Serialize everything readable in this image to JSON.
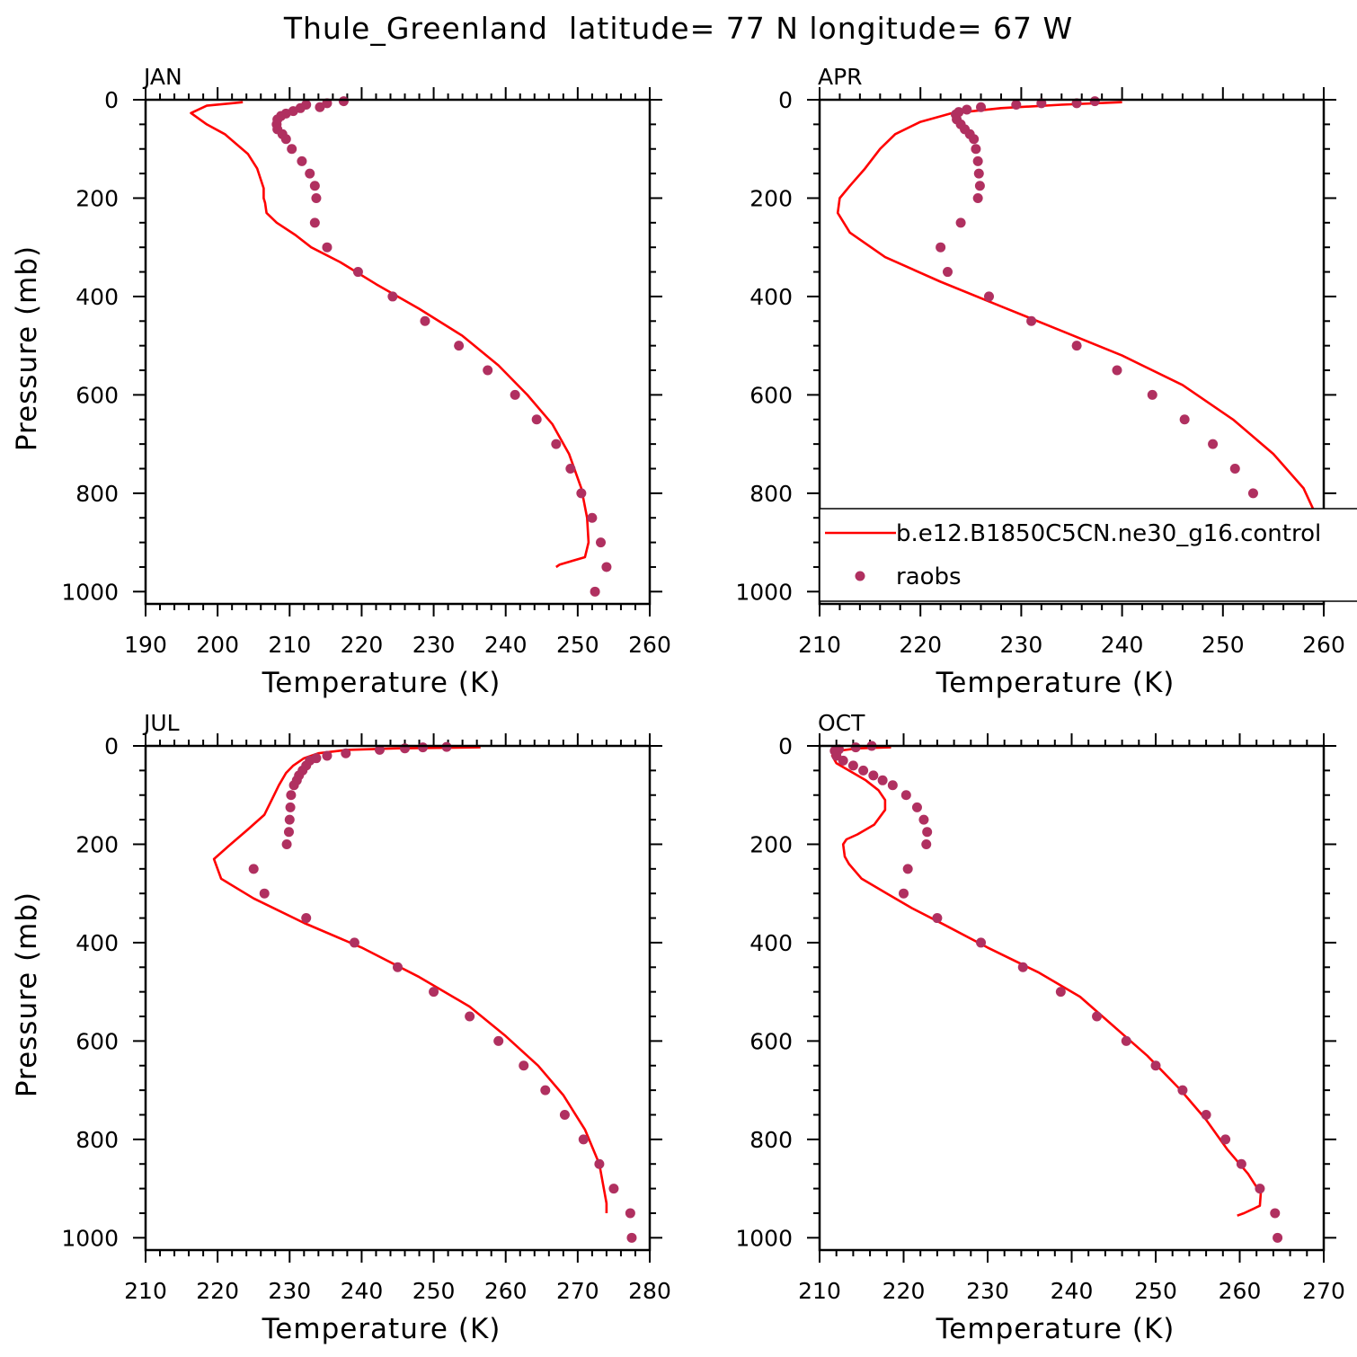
{
  "title": "Thule_Greenland  latitude= 77 N longitude= 67 W",
  "colors": {
    "model_line": "#ff0000",
    "obs_points": "#b03060",
    "frame": "#000000"
  },
  "legend": {
    "entries": [
      "b.e12.B1850C5CN.ne30_g16.control",
      "raobs"
    ],
    "panel": "APR"
  },
  "chart_data": [
    {
      "type": "line",
      "panel_label": "JAN",
      "xlabel": "Temperature (K)",
      "ylabel": "Pressure (mb)",
      "xlim": [
        190,
        260
      ],
      "ylim": [
        1025,
        0
      ],
      "xticks": [
        190,
        200,
        210,
        220,
        230,
        240,
        250,
        260
      ],
      "yticks": [
        0,
        200,
        400,
        600,
        800,
        1000
      ],
      "series": [
        {
          "name": "b.e12.B1850C5CN.ne30_g16.control",
          "kind": "line",
          "points": [
            [
              203.5,
              5
            ],
            [
              198.5,
              12
            ],
            [
              196.3,
              27
            ],
            [
              198.5,
              50
            ],
            [
              201,
              70
            ],
            [
              204.2,
              110
            ],
            [
              205.5,
              140
            ],
            [
              206.4,
              180
            ],
            [
              206.4,
              200
            ],
            [
              206.6,
              210
            ],
            [
              206.8,
              230
            ],
            [
              208.2,
              250
            ],
            [
              210.8,
              275
            ],
            [
              213,
              300
            ],
            [
              217,
              330
            ],
            [
              222,
              375
            ],
            [
              228,
              425
            ],
            [
              234,
              480
            ],
            [
              239,
              540
            ],
            [
              243,
              600
            ],
            [
              246.5,
              660
            ],
            [
              248.8,
              720
            ],
            [
              250.5,
              790
            ],
            [
              251.3,
              850
            ],
            [
              251.5,
              900
            ],
            [
              251,
              930
            ],
            [
              247.5,
              945
            ],
            [
              247,
              950
            ]
          ]
        },
        {
          "name": "raobs",
          "kind": "scatter",
          "points": [
            [
              217.5,
              3
            ],
            [
              215.2,
              7
            ],
            [
              214.2,
              15
            ],
            [
              212.3,
              10
            ],
            [
              211.5,
              17
            ],
            [
              210.5,
              23
            ],
            [
              209.5,
              28
            ],
            [
              208.8,
              33
            ],
            [
              208.3,
              40
            ],
            [
              208.2,
              50
            ],
            [
              208.3,
              60
            ],
            [
              209,
              70
            ],
            [
              209.5,
              80
            ],
            [
              210.3,
              100
            ],
            [
              211.7,
              125
            ],
            [
              212.8,
              150
            ],
            [
              213.5,
              175
            ],
            [
              213.7,
              200
            ],
            [
              213.5,
              250
            ],
            [
              215.2,
              300
            ],
            [
              219.5,
              350
            ],
            [
              224.3,
              400
            ],
            [
              228.8,
              450
            ],
            [
              233.5,
              500
            ],
            [
              237.5,
              550
            ],
            [
              241.3,
              600
            ],
            [
              244.3,
              650
            ],
            [
              247,
              700
            ],
            [
              249,
              750
            ],
            [
              250.5,
              800
            ],
            [
              252,
              850
            ],
            [
              253.2,
              900
            ],
            [
              254,
              950
            ],
            [
              252.4,
              1000
            ]
          ]
        }
      ]
    },
    {
      "type": "line",
      "panel_label": "APR",
      "xlabel": "Temperature (K)",
      "ylabel": "",
      "xlim": [
        210,
        260
      ],
      "ylim": [
        1025,
        0
      ],
      "xticks": [
        210,
        220,
        230,
        240,
        250,
        260
      ],
      "yticks": [
        0,
        200,
        400,
        600,
        800,
        1000
      ],
      "series": [
        {
          "name": "b.e12.B1850C5CN.ne30_g16.control",
          "kind": "line",
          "points": [
            [
              240,
              5
            ],
            [
              234,
              10
            ],
            [
              228,
              17
            ],
            [
              223,
              28
            ],
            [
              220,
              45
            ],
            [
              217.5,
              70
            ],
            [
              216,
              100
            ],
            [
              214.5,
              140
            ],
            [
              213,
              175
            ],
            [
              212,
              200
            ],
            [
              211.8,
              230
            ],
            [
              213,
              270
            ],
            [
              216.5,
              320
            ],
            [
              222,
              370
            ],
            [
              228,
              420
            ],
            [
              234,
              470
            ],
            [
              240,
              520
            ],
            [
              246,
              580
            ],
            [
              251,
              650
            ],
            [
              255,
              720
            ],
            [
              258,
              790
            ],
            [
              259.8,
              870
            ],
            [
              260,
              920
            ],
            [
              259.2,
              960
            ],
            [
              256.5,
              990
            ]
          ]
        },
        {
          "name": "raobs",
          "kind": "scatter",
          "points": [
            [
              237.3,
              3
            ],
            [
              235.5,
              7
            ],
            [
              232,
              7
            ],
            [
              229.5,
              10
            ],
            [
              226,
              15
            ],
            [
              224.6,
              20
            ],
            [
              223.8,
              25
            ],
            [
              223.5,
              30
            ],
            [
              223.6,
              40
            ],
            [
              224,
              50
            ],
            [
              224.4,
              60
            ],
            [
              224.9,
              70
            ],
            [
              225.3,
              80
            ],
            [
              225.5,
              100
            ],
            [
              225.7,
              125
            ],
            [
              225.8,
              150
            ],
            [
              225.9,
              175
            ],
            [
              225.7,
              200
            ],
            [
              224,
              250
            ],
            [
              222,
              300
            ],
            [
              222.7,
              350
            ],
            [
              226.8,
              400
            ],
            [
              231,
              450
            ],
            [
              235.5,
              500
            ],
            [
              239.5,
              550
            ],
            [
              243,
              600
            ],
            [
              246.2,
              650
            ],
            [
              249,
              700
            ],
            [
              251.2,
              750
            ],
            [
              253,
              800
            ],
            [
              254.2,
              850
            ],
            [
              256.3,
              900
            ],
            [
              257.2,
              950
            ],
            [
              257.2,
              1000
            ]
          ]
        }
      ]
    },
    {
      "type": "line",
      "panel_label": "JUL",
      "xlabel": "Temperature (K)",
      "ylabel": "Pressure (mb)",
      "xlim": [
        210,
        280
      ],
      "ylim": [
        1025,
        0
      ],
      "xticks": [
        210,
        220,
        230,
        240,
        250,
        260,
        270,
        280
      ],
      "yticks": [
        0,
        200,
        400,
        600,
        800,
        1000
      ],
      "series": [
        {
          "name": "b.e12.B1850C5CN.ne30_g16.control",
          "kind": "line",
          "points": [
            [
              256.5,
              3
            ],
            [
              245,
              5
            ],
            [
              238,
              8
            ],
            [
              234,
              15
            ],
            [
              232,
              25
            ],
            [
              230.5,
              40
            ],
            [
              229.5,
              55
            ],
            [
              228.5,
              80
            ],
            [
              227.5,
              110
            ],
            [
              226.5,
              140
            ],
            [
              224.2,
              170
            ],
            [
              221.8,
              200
            ],
            [
              219.5,
              230
            ],
            [
              220.5,
              270
            ],
            [
              225,
              310
            ],
            [
              232,
              360
            ],
            [
              240,
              410
            ],
            [
              248,
              470
            ],
            [
              255,
              530
            ],
            [
              260,
              590
            ],
            [
              264.5,
              650
            ],
            [
              268,
              710
            ],
            [
              271,
              780
            ],
            [
              273,
              850
            ],
            [
              274,
              930
            ],
            [
              274,
              950
            ]
          ]
        },
        {
          "name": "raobs",
          "kind": "scatter",
          "points": [
            [
              251.8,
              2
            ],
            [
              248.5,
              3
            ],
            [
              246,
              5
            ],
            [
              242.5,
              8
            ],
            [
              237.8,
              15
            ],
            [
              235.2,
              20
            ],
            [
              233.7,
              25
            ],
            [
              232.8,
              30
            ],
            [
              232.3,
              40
            ],
            [
              231.8,
              50
            ],
            [
              231.3,
              60
            ],
            [
              231,
              70
            ],
            [
              230.6,
              80
            ],
            [
              230.2,
              100
            ],
            [
              230.1,
              125
            ],
            [
              230,
              150
            ],
            [
              229.9,
              175
            ],
            [
              229.6,
              200
            ],
            [
              225,
              250
            ],
            [
              226.5,
              300
            ],
            [
              232.3,
              350
            ],
            [
              239,
              400
            ],
            [
              245,
              450
            ],
            [
              250,
              500
            ],
            [
              255,
              550
            ],
            [
              259,
              600
            ],
            [
              262.5,
              650
            ],
            [
              265.5,
              700
            ],
            [
              268.2,
              750
            ],
            [
              270.8,
              800
            ],
            [
              273,
              850
            ],
            [
              275,
              900
            ],
            [
              277.3,
              950
            ],
            [
              277.5,
              1000
            ]
          ]
        }
      ]
    },
    {
      "type": "line",
      "panel_label": "OCT",
      "xlabel": "Temperature (K)",
      "ylabel": "",
      "xlim": [
        210,
        270
      ],
      "ylim": [
        1025,
        0
      ],
      "xticks": [
        210,
        220,
        230,
        240,
        250,
        260,
        270
      ],
      "yticks": [
        0,
        200,
        400,
        600,
        800,
        1000
      ],
      "series": [
        {
          "name": "b.e12.B1850C5CN.ne30_g16.control",
          "kind": "line",
          "points": [
            [
              218.5,
              3
            ],
            [
              214.5,
              5
            ],
            [
              212.2,
              10
            ],
            [
              211.5,
              20
            ],
            [
              212,
              35
            ],
            [
              213.5,
              50
            ],
            [
              215.5,
              70
            ],
            [
              217,
              90
            ],
            [
              217.8,
              110
            ],
            [
              217.8,
              130
            ],
            [
              216.5,
              160
            ],
            [
              214.5,
              180
            ],
            [
              213.2,
              190
            ],
            [
              212.8,
              200
            ],
            [
              213,
              225
            ],
            [
              213.5,
              240
            ],
            [
              215,
              270
            ],
            [
              218,
              300
            ],
            [
              221,
              330
            ],
            [
              225,
              365
            ],
            [
              230,
              410
            ],
            [
              236,
              460
            ],
            [
              241,
              510
            ],
            [
              245,
              570
            ],
            [
              249,
              630
            ],
            [
              253,
              700
            ],
            [
              256,
              760
            ],
            [
              258.5,
              820
            ],
            [
              261,
              870
            ],
            [
              262.5,
              910
            ],
            [
              262.4,
              935
            ],
            [
              260.5,
              950
            ],
            [
              259.7,
              955
            ]
          ]
        },
        {
          "name": "raobs",
          "kind": "scatter",
          "points": [
            [
              216.2,
              0
            ],
            [
              214.3,
              3
            ],
            [
              212.3,
              7
            ],
            [
              211.8,
              10
            ],
            [
              212,
              20
            ],
            [
              212.8,
              30
            ],
            [
              214,
              40
            ],
            [
              215.2,
              50
            ],
            [
              216.4,
              60
            ],
            [
              217.5,
              70
            ],
            [
              218.7,
              80
            ],
            [
              220.3,
              100
            ],
            [
              221.6,
              125
            ],
            [
              222.4,
              150
            ],
            [
              222.8,
              175
            ],
            [
              222.7,
              200
            ],
            [
              220.5,
              250
            ],
            [
              220,
              300
            ],
            [
              224,
              350
            ],
            [
              229.2,
              400
            ],
            [
              234.2,
              450
            ],
            [
              238.7,
              500
            ],
            [
              243,
              550
            ],
            [
              246.5,
              600
            ],
            [
              250,
              650
            ],
            [
              253.2,
              700
            ],
            [
              256,
              750
            ],
            [
              258.3,
              800
            ],
            [
              260.2,
              850
            ],
            [
              262.4,
              900
            ],
            [
              264.2,
              950
            ],
            [
              264.5,
              1000
            ]
          ]
        }
      ]
    }
  ]
}
